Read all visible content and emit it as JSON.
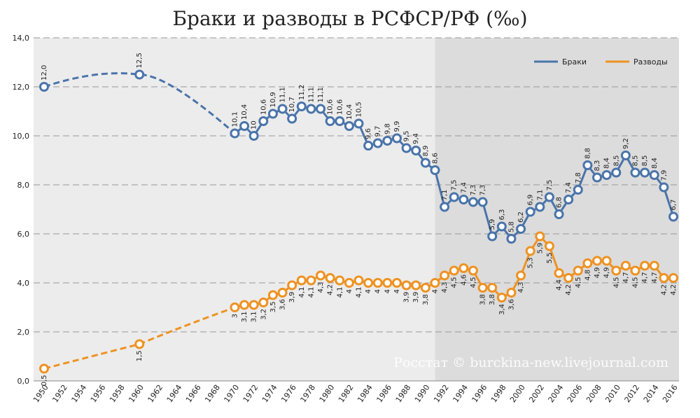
{
  "chart_data": {
    "type": "line",
    "title": "Браки и разводы в РСФСР/РФ (‰)",
    "watermark": "Росстат © burckina-new.livejournal.com",
    "ylim": [
      0,
      14
    ],
    "yticks": [
      "0,0",
      "2,0",
      "4,0",
      "6,0",
      "8,0",
      "10,0",
      "12,0",
      "14,0"
    ],
    "xlim": [
      1950,
      2016
    ],
    "xticks": [
      1950,
      1952,
      1954,
      1956,
      1958,
      1960,
      1962,
      1964,
      1966,
      1968,
      1970,
      1972,
      1974,
      1976,
      1978,
      1980,
      1982,
      1984,
      1986,
      1988,
      1990,
      1992,
      1994,
      1996,
      1998,
      2000,
      2002,
      2004,
      2006,
      2008,
      2010,
      2012,
      2014,
      2016
    ],
    "grid": true,
    "legend": "top-right",
    "shaded_from": 1991,
    "colors": {
      "marriages": "#4a74aa",
      "divorces": "#ee9222",
      "background": "#ececec",
      "shaded": "#dcdcdc"
    },
    "series": [
      {
        "name": "Браки",
        "key": "marriages",
        "x": [
          1950,
          1960,
          1970,
          1971,
          1972,
          1973,
          1974,
          1975,
          1976,
          1977,
          1978,
          1979,
          1980,
          1981,
          1982,
          1983,
          1984,
          1985,
          1986,
          1987,
          1988,
          1989,
          1990,
          1991,
          1992,
          1993,
          1994,
          1995,
          1996,
          1997,
          1998,
          1999,
          2000,
          2001,
          2002,
          2003,
          2004,
          2005,
          2006,
          2007,
          2008,
          2009,
          2010,
          2011,
          2012,
          2013,
          2014,
          2015,
          2016
        ],
        "y": [
          12.0,
          12.5,
          10.1,
          10.4,
          10,
          10.6,
          10.9,
          11.1,
          10.7,
          11.2,
          11.1,
          11.1,
          10.6,
          10.6,
          10.4,
          10.5,
          9.6,
          9.7,
          9.8,
          9.9,
          9.5,
          9.4,
          8.9,
          8.6,
          7.1,
          7.5,
          7.4,
          7.3,
          7.3,
          5.9,
          6.3,
          5.8,
          6.2,
          6.9,
          7.1,
          7.5,
          6.8,
          7.4,
          7.8,
          8.8,
          8.3,
          8.4,
          8.5,
          9.2,
          8.5,
          8.5,
          8.4,
          7.9,
          6.7
        ],
        "labels": [
          "12,0",
          "12,5",
          "10,1",
          "10,4",
          "10",
          "10,6",
          "10,9",
          "11,1",
          "10,7",
          "11,2",
          "11,1",
          "11,1",
          "10,6",
          "10,6",
          "10,4",
          "10,5",
          "9,6",
          "9,7",
          "9,8",
          "9,9",
          "9,5",
          "9,4",
          "8,9",
          "8,6",
          "7,1",
          "7,5",
          "7,4",
          "7,3",
          "7,3",
          "5,9",
          "6,3",
          "5,8",
          "6,2",
          "6,9",
          "7,1",
          "7,5",
          "6,8",
          "7,4",
          "7,8",
          "8,8",
          "8,3",
          "8,4",
          "8,5",
          "9,2",
          "8,5",
          "8,5",
          "8,4",
          "7,9",
          "6,7"
        ]
      },
      {
        "name": "Разводы",
        "key": "divorces",
        "x": [
          1950,
          1960,
          1970,
          1971,
          1972,
          1973,
          1974,
          1975,
          1976,
          1977,
          1978,
          1979,
          1980,
          1981,
          1982,
          1983,
          1984,
          1985,
          1986,
          1987,
          1988,
          1989,
          1990,
          1991,
          1992,
          1993,
          1994,
          1995,
          1996,
          1997,
          1998,
          1999,
          2000,
          2001,
          2002,
          2003,
          2004,
          2005,
          2006,
          2007,
          2008,
          2009,
          2010,
          2011,
          2012,
          2013,
          2014,
          2015,
          2016
        ],
        "y": [
          0.5,
          1.5,
          3,
          3.1,
          3.1,
          3.2,
          3.5,
          3.6,
          3.9,
          4.1,
          4.1,
          4.3,
          4.2,
          4.1,
          4,
          4.1,
          4,
          4,
          4,
          4,
          3.9,
          3.9,
          3.8,
          4,
          4.3,
          4.5,
          4.6,
          4.5,
          3.8,
          3.8,
          3.4,
          3.6,
          4.3,
          5.3,
          5.9,
          5.5,
          4.4,
          4.2,
          4.5,
          4.8,
          4.9,
          4.9,
          4.5,
          4.7,
          4.5,
          4.7,
          4.7,
          4.2,
          4.2
        ],
        "labels": [
          "0,5",
          "1,5",
          "3",
          "3,1",
          "3,1",
          "3,2",
          "3,5",
          "3,6",
          "3,9",
          "4,1",
          "4,1",
          "4,3",
          "4,2",
          "4,1",
          "4",
          "4,1",
          "4",
          "4",
          "4",
          "4",
          "3,9",
          "3,9",
          "3,8",
          "4",
          "4,3",
          "4,5",
          "4,6",
          "4,5",
          "3,8",
          "3,8",
          "3,4",
          "3,6",
          "4,3",
          "5,3",
          "5,9",
          "5,5",
          "4,4",
          "4,2",
          "4,5",
          "4,8",
          "4,9",
          "4,9",
          "4,5",
          "4,7",
          "4,5",
          "4,7",
          "4,7",
          "4,2",
          "4,2"
        ]
      }
    ]
  }
}
